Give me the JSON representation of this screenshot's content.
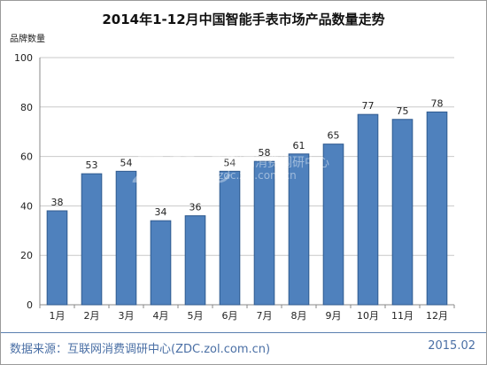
{
  "chart_data": {
    "type": "bar",
    "title": "2014年1-12月中国智能手表市场产品数量走势",
    "ylabel": "品牌数量",
    "xlabel": "",
    "categories": [
      "1月",
      "2月",
      "3月",
      "4月",
      "5月",
      "6月",
      "7月",
      "8月",
      "9月",
      "10月",
      "11月",
      "12月"
    ],
    "values": [
      38,
      53,
      54,
      34,
      36,
      54,
      58,
      61,
      65,
      77,
      75,
      78
    ],
    "ylim": [
      0,
      100
    ],
    "yticks": [
      0,
      20,
      40,
      60,
      80,
      100
    ],
    "grid": true,
    "legend": "none",
    "bar_color": "#4f81bd",
    "bar_stroke": "#2f5a8f"
  },
  "watermark": {
    "logo": "ZDC",
    "text": "互联网消费调研中心",
    "url": "zdc.zol.com.cn"
  },
  "footer": {
    "source": "数据来源：互联网消费调研中心(ZDC.zol.com.cn)",
    "date": "2015.02"
  },
  "colors": {
    "footer_text": "#4a6fa5",
    "gridline": "#c9c9c9"
  }
}
